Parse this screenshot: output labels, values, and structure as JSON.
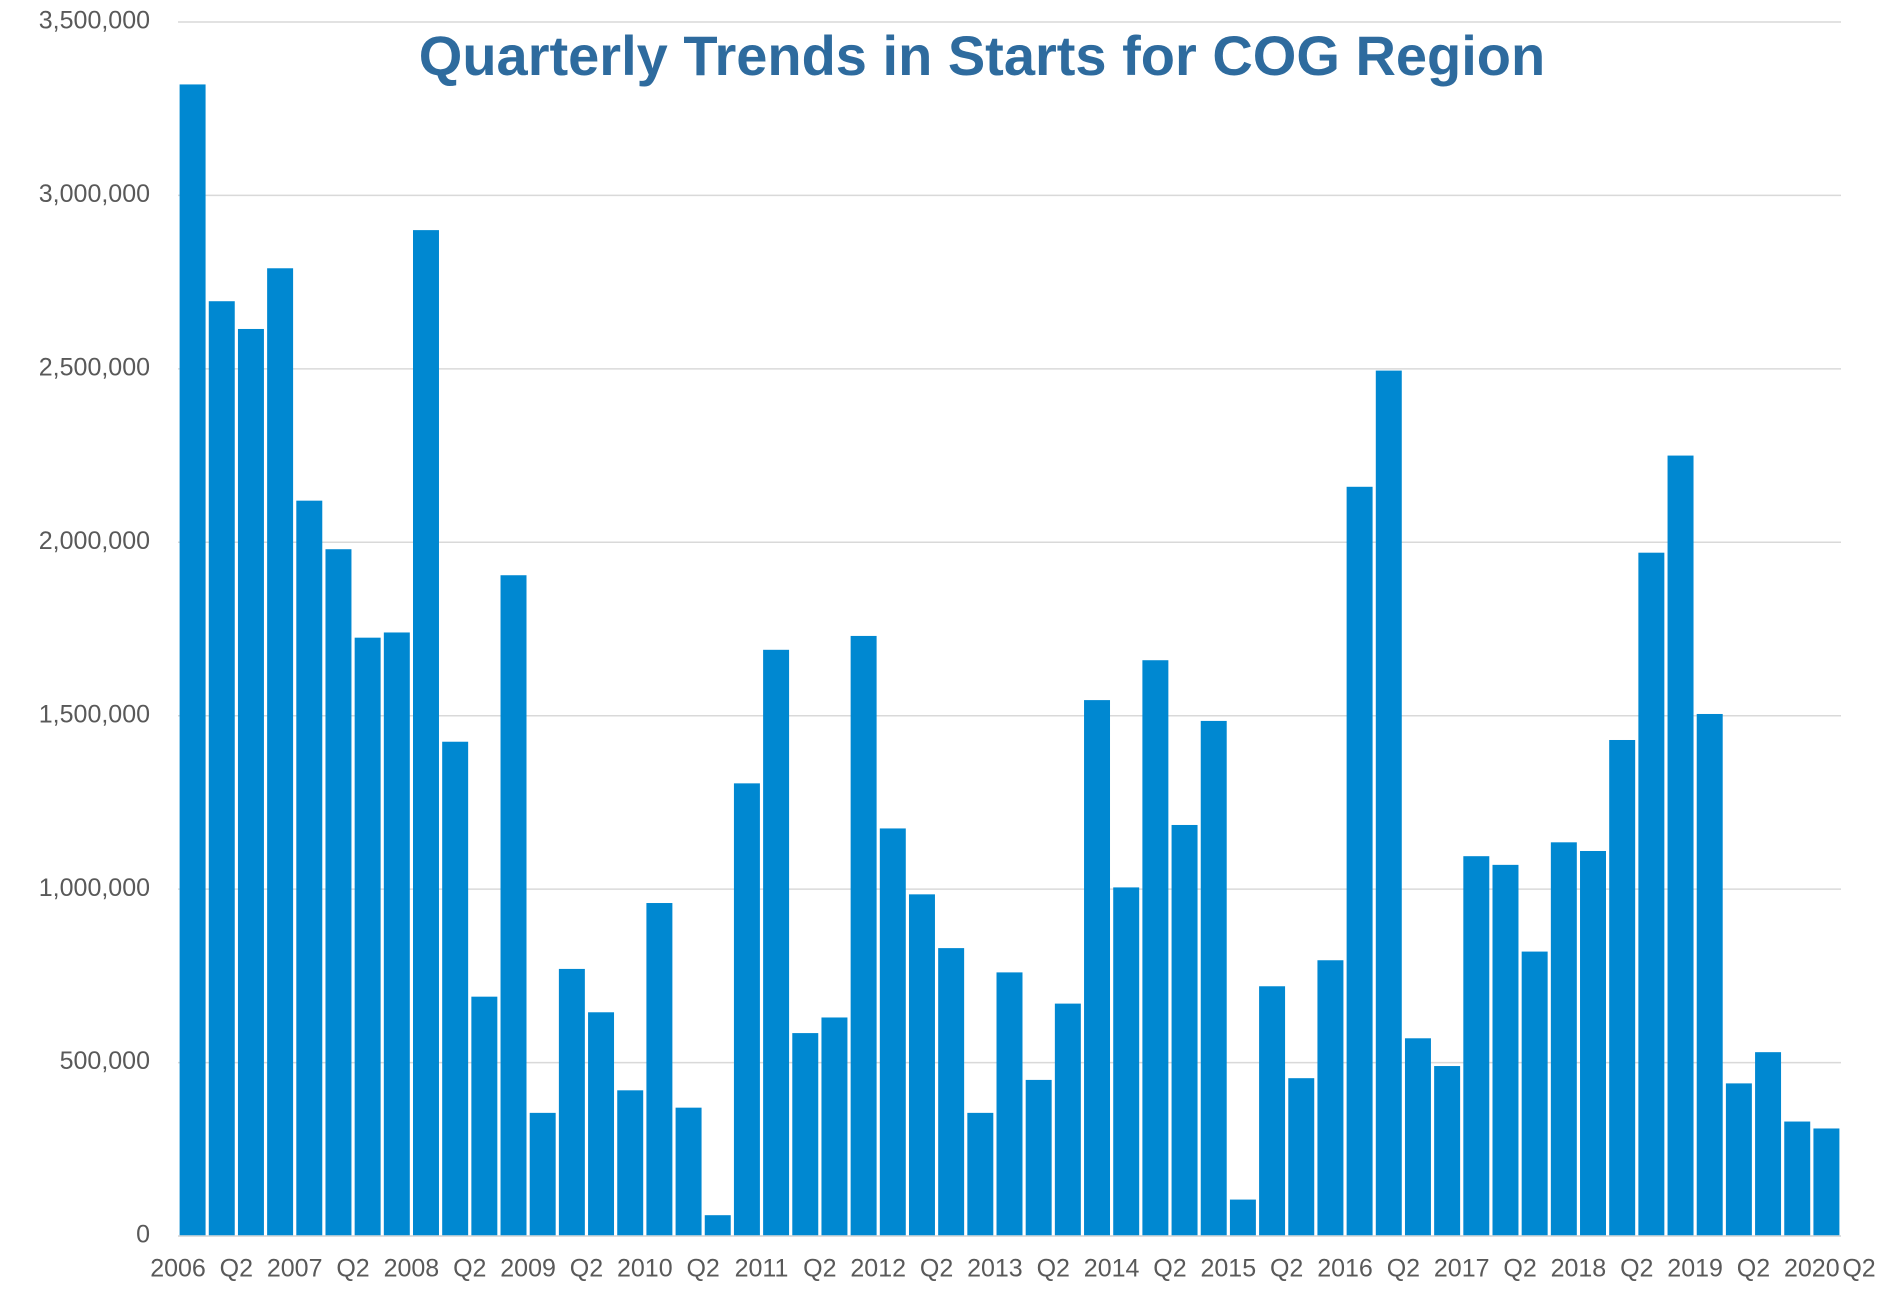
{
  "chart_data": {
    "type": "bar",
    "title": "Quarterly Trends in Starts for COG Region",
    "categories": [
      "2006",
      null,
      "Q2",
      null,
      "2007",
      null,
      "Q2",
      null,
      "2008",
      null,
      "Q2",
      null,
      "2009",
      null,
      "Q2",
      null,
      "2010",
      null,
      "Q2",
      null,
      "2011",
      null,
      "Q2",
      null,
      "2012",
      null,
      "Q2",
      null,
      "2013",
      null,
      "Q2",
      null,
      "2014",
      null,
      "Q2",
      null,
      "2015",
      null,
      "Q2",
      null,
      "2016",
      null,
      "Q2",
      null,
      "2017",
      null,
      "Q2",
      null,
      "2018",
      null,
      "Q2",
      null,
      "2019",
      null,
      "Q2",
      null,
      "2020",
      null,
      "Q2"
    ],
    "values": [
      3320000,
      2695000,
      2615000,
      2790000,
      2120000,
      1980000,
      1725000,
      1740000,
      2900000,
      1425000,
      690000,
      1905000,
      355000,
      770000,
      645000,
      420000,
      960000,
      370000,
      60000,
      1305000,
      1690000,
      585000,
      630000,
      1730000,
      1175000,
      985000,
      830000,
      355000,
      760000,
      450000,
      670000,
      1545000,
      1005000,
      1660000,
      1185000,
      1485000,
      105000,
      720000,
      455000,
      795000,
      2160000,
      2495000,
      570000,
      490000,
      1095000,
      1070000,
      820000,
      1135000,
      1110000,
      1430000,
      1970000,
      2250000,
      1505000,
      440000,
      530000,
      330000,
      310000,
      null,
      null
    ],
    "color": "#0088d1",
    "ylim": [
      0,
      3500000
    ],
    "yticks": [
      {
        "value": 0,
        "label": "0"
      },
      {
        "value": 500000,
        "label": "500,000"
      },
      {
        "value": 1000000,
        "label": "1,000,000"
      },
      {
        "value": 1500000,
        "label": "1,500,000"
      },
      {
        "value": 2000000,
        "label": "2,000,000"
      },
      {
        "value": 2500000,
        "label": "2,500,000"
      },
      {
        "value": 3000000,
        "label": "3,000,000"
      },
      {
        "value": 3500000,
        "label": "3,500,000"
      }
    ],
    "grid": true
  }
}
